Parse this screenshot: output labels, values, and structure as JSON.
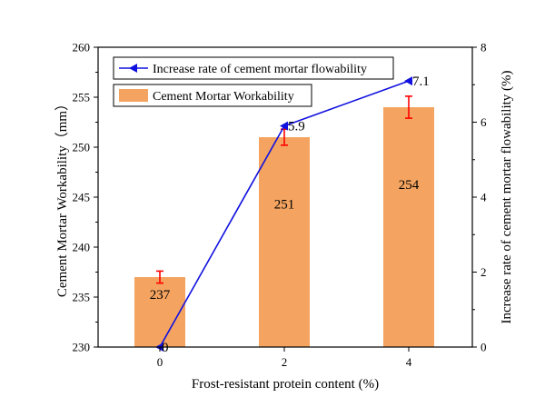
{
  "chart_data": {
    "type": "bar+line",
    "categories": [
      "0",
      "2",
      "4"
    ],
    "xlabel": "Frost-resistant protein content (%)",
    "bars": {
      "name": "Cement Mortar Workability",
      "values": [
        237,
        251,
        254
      ],
      "errors": [
        0.6,
        0.8,
        1.1
      ],
      "labels": [
        "237",
        "251",
        "254"
      ],
      "color": "#F4A460",
      "error_color": "#FF0000",
      "axis": {
        "label": "Cement Mortar Workability（mm）",
        "ylim": [
          230,
          260
        ],
        "ticks": [
          "230",
          "235",
          "240",
          "245",
          "250",
          "255",
          "260"
        ]
      }
    },
    "line": {
      "name": "Increase rate of cement mortar flowability",
      "values": [
        0,
        5.9,
        7.1
      ],
      "labels": [
        "0",
        "5.9",
        "7.1"
      ],
      "color": "#1010E0",
      "axis": {
        "label": "Increase rate of cement mortar flowability (%)",
        "ylim": [
          0,
          8
        ],
        "ticks": [
          "0",
          "2",
          "4",
          "6",
          "8"
        ]
      }
    },
    "legend": {
      "placement": "top-left",
      "entries": [
        "Increase rate of cement mortar flowability",
        "Cement Mortar Workability"
      ]
    }
  }
}
